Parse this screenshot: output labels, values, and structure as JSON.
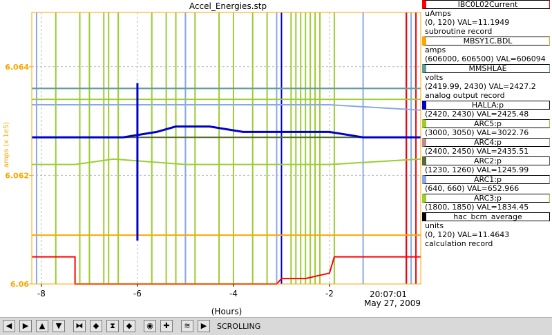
{
  "chart_data": {
    "type": "line",
    "title": "Accel_Energies.stp",
    "xlabel": "(Hours)",
    "ylabel": "amps (x 1e5)",
    "xlim": [
      -8.2,
      -0.1
    ],
    "ylim": [
      6.06,
      6.065
    ],
    "x_ticks": [
      -8,
      -6,
      -4,
      -2
    ],
    "x_tick_labels": [
      "-8",
      "-6",
      "-4",
      "-2"
    ],
    "y_ticks": [
      6.06,
      6.062,
      6.064
    ],
    "y_tick_labels": [
      "6.06",
      "6.062",
      "6.064"
    ],
    "time_label": "20:07:01",
    "date_label": "May 27, 2009",
    "grid": true,
    "axis_color": "#ffa500",
    "series": [
      {
        "name": "ARC3:p",
        "color": "#9acd32",
        "data": [
          [
            -8.2,
            6.0622
          ],
          [
            -7.3,
            6.0622
          ],
          [
            -6.5,
            6.0623
          ],
          [
            -5,
            6.0622
          ],
          [
            -3.5,
            6.0622
          ],
          [
            -2,
            6.0622
          ],
          [
            -0.1,
            6.0623
          ]
        ]
      },
      {
        "name": "ARC2:p",
        "color": "#556b2f",
        "data": [
          [
            -8.2,
            6.0627
          ],
          [
            -6.5,
            6.0627
          ],
          [
            -5,
            6.0627
          ],
          [
            -3,
            6.0627
          ],
          [
            -0.1,
            6.0627
          ]
        ]
      },
      {
        "name": "HALLA:p",
        "color": "#0000cd",
        "data": [
          [
            -8.2,
            6.0627
          ],
          [
            -6.3,
            6.0627
          ],
          [
            -5.6,
            6.0628
          ],
          [
            -5.2,
            6.0629
          ],
          [
            -4.5,
            6.0629
          ],
          [
            -3.8,
            6.0628
          ],
          [
            -3,
            6.0628
          ],
          [
            -2,
            6.0628
          ],
          [
            -1.3,
            6.0627
          ],
          [
            -0.1,
            6.0627
          ]
        ]
      },
      {
        "name": "ARC1:p",
        "color": "#87a9e8",
        "data": [
          [
            -8.2,
            6.0633
          ],
          [
            -6,
            6.0633
          ],
          [
            -4,
            6.0633
          ],
          [
            -2,
            6.0633
          ],
          [
            -0.1,
            6.0632
          ]
        ]
      },
      {
        "name": "ARC5:p",
        "color": "#9acd32",
        "data": [
          [
            -8.2,
            6.0634
          ],
          [
            -6,
            6.0634
          ],
          [
            -4,
            6.0634
          ],
          [
            -2,
            6.0634
          ],
          [
            -0.1,
            6.0634
          ]
        ]
      },
      {
        "name": "ARC4:p",
        "color": "#bc8f8f",
        "data": [
          [
            -8.2,
            6.0636
          ],
          [
            -6,
            6.0636
          ],
          [
            -4,
            6.0636
          ],
          [
            -2,
            6.0636
          ],
          [
            -0.1,
            6.0636
          ]
        ]
      },
      {
        "name": "MMSHLAE",
        "color": "#5f9ea0",
        "data": [
          [
            -8.2,
            6.0636
          ],
          [
            -0.1,
            6.0636
          ]
        ]
      },
      {
        "name": "MBSY1C.BDL",
        "color": "#ffa500",
        "data": [
          [
            -8.2,
            6.0609
          ],
          [
            -0.1,
            6.0609
          ]
        ]
      },
      {
        "name": "IBC0L02Current",
        "color": "#ff0000",
        "data": [
          [
            -8.2,
            6.0605
          ],
          [
            -7.3,
            6.0605
          ],
          [
            -7.3,
            6.06
          ],
          [
            -3.1,
            6.06
          ],
          [
            -3,
            6.0601
          ],
          [
            -2.5,
            6.0601
          ],
          [
            -2,
            6.0602
          ],
          [
            -1.9,
            6.0605
          ],
          [
            -0.1,
            6.0605
          ]
        ]
      }
    ],
    "spikes": [
      {
        "color": "#9acd32",
        "x": [
          -7.7,
          -7.2,
          -7.0,
          -6.7,
          -6.6,
          -6.4,
          -5.7,
          -5.4,
          -5.2,
          -5.0,
          -4.8,
          -4.3,
          -4.0,
          -3.6,
          -3.3,
          -2.8,
          -2.7,
          -2.6,
          -2.5,
          -2.4,
          -2.3,
          -2.2,
          -1.9,
          -0.4
        ]
      },
      {
        "color": "#87a9e8",
        "x": [
          -8.1,
          -5.0,
          -3.1,
          -1.3,
          -0.3
        ]
      },
      {
        "color": "#0000cd",
        "x": [
          -3.0,
          -0.4
        ]
      },
      {
        "color": "#ff0000",
        "x": [
          -0.4,
          -0.2
        ]
      }
    ],
    "legend": {
      "position": "right",
      "entries": [
        {
          "name": "IBC0L02Current",
          "color": "#ff0000",
          "units": "uAmps",
          "range_val": "(0, 120) VAL=11.1949",
          "record": "subroutine record"
        },
        {
          "name": "MBSY1C.BDL",
          "color": "#ffa500",
          "units": "amps",
          "range_val": "(606000, 606500)  VAL=606094",
          "record": ""
        },
        {
          "name": "MMSHLAE",
          "color": "#5f9ea0",
          "units": "volts",
          "range_val": "(2419.99, 2430)  VAL=2427.2",
          "record": "analog output record"
        },
        {
          "name": "HALLA:p",
          "color": "#0000cd",
          "units": "",
          "range_val": "(2420, 2430)  VAL=2425.48",
          "record": ""
        },
        {
          "name": "ARC5:p",
          "color": "#9acd32",
          "units": "",
          "range_val": "(3000, 3050)  VAL=3022.76",
          "record": ""
        },
        {
          "name": "ARC4:p",
          "color": "#bc8f8f",
          "units": "",
          "range_val": "(2400, 2450)  VAL=2435.51",
          "record": ""
        },
        {
          "name": "ARC2:p",
          "color": "#556b2f",
          "units": "",
          "range_val": "(1230, 1260)  VAL=1245.99",
          "record": ""
        },
        {
          "name": "ARC1:p",
          "color": "#87a9e8",
          "units": "",
          "range_val": "(640, 660)  VAL=652.966",
          "record": ""
        },
        {
          "name": "ARC3:p",
          "color": "#9acd32",
          "units": "",
          "range_val": "(1800, 1850)  VAL=1834.45",
          "record": ""
        },
        {
          "name": "hac_bcm_average",
          "color": "#000000",
          "units": "units",
          "range_val": "(0, 120) VAL=11.4643",
          "record": "calculation record"
        }
      ]
    }
  },
  "toolbar": {
    "buttons": [
      {
        "name": "pan-left-button",
        "icon": "arrow-left-icon",
        "glyph": "◀"
      },
      {
        "name": "pan-right-button",
        "icon": "arrow-right-icon",
        "glyph": "▶"
      },
      {
        "name": "pan-up-button",
        "icon": "arrow-up-icon",
        "glyph": "▲"
      },
      {
        "name": "pan-down-button",
        "icon": "arrow-down-icon",
        "glyph": "▼"
      },
      {
        "name": "zoom-in-x-button",
        "icon": "zoom-in-x-icon",
        "glyph": "⧓"
      },
      {
        "name": "zoom-out-x-button",
        "icon": "zoom-out-x-icon",
        "glyph": "◆"
      },
      {
        "name": "zoom-in-y-button",
        "icon": "zoom-in-y-icon",
        "glyph": "⧗"
      },
      {
        "name": "zoom-out-y-button",
        "icon": "zoom-out-y-icon",
        "glyph": "◆"
      },
      {
        "name": "autoscale-button",
        "icon": "autoscale-icon",
        "glyph": "◉"
      },
      {
        "name": "add-button",
        "icon": "plus-icon",
        "glyph": "✚"
      },
      {
        "name": "stagger-button",
        "icon": "stagger-icon",
        "glyph": "≋"
      },
      {
        "name": "scroll-button",
        "icon": "scroll-icon",
        "glyph": "▶"
      }
    ],
    "status": "SCROLLING"
  }
}
